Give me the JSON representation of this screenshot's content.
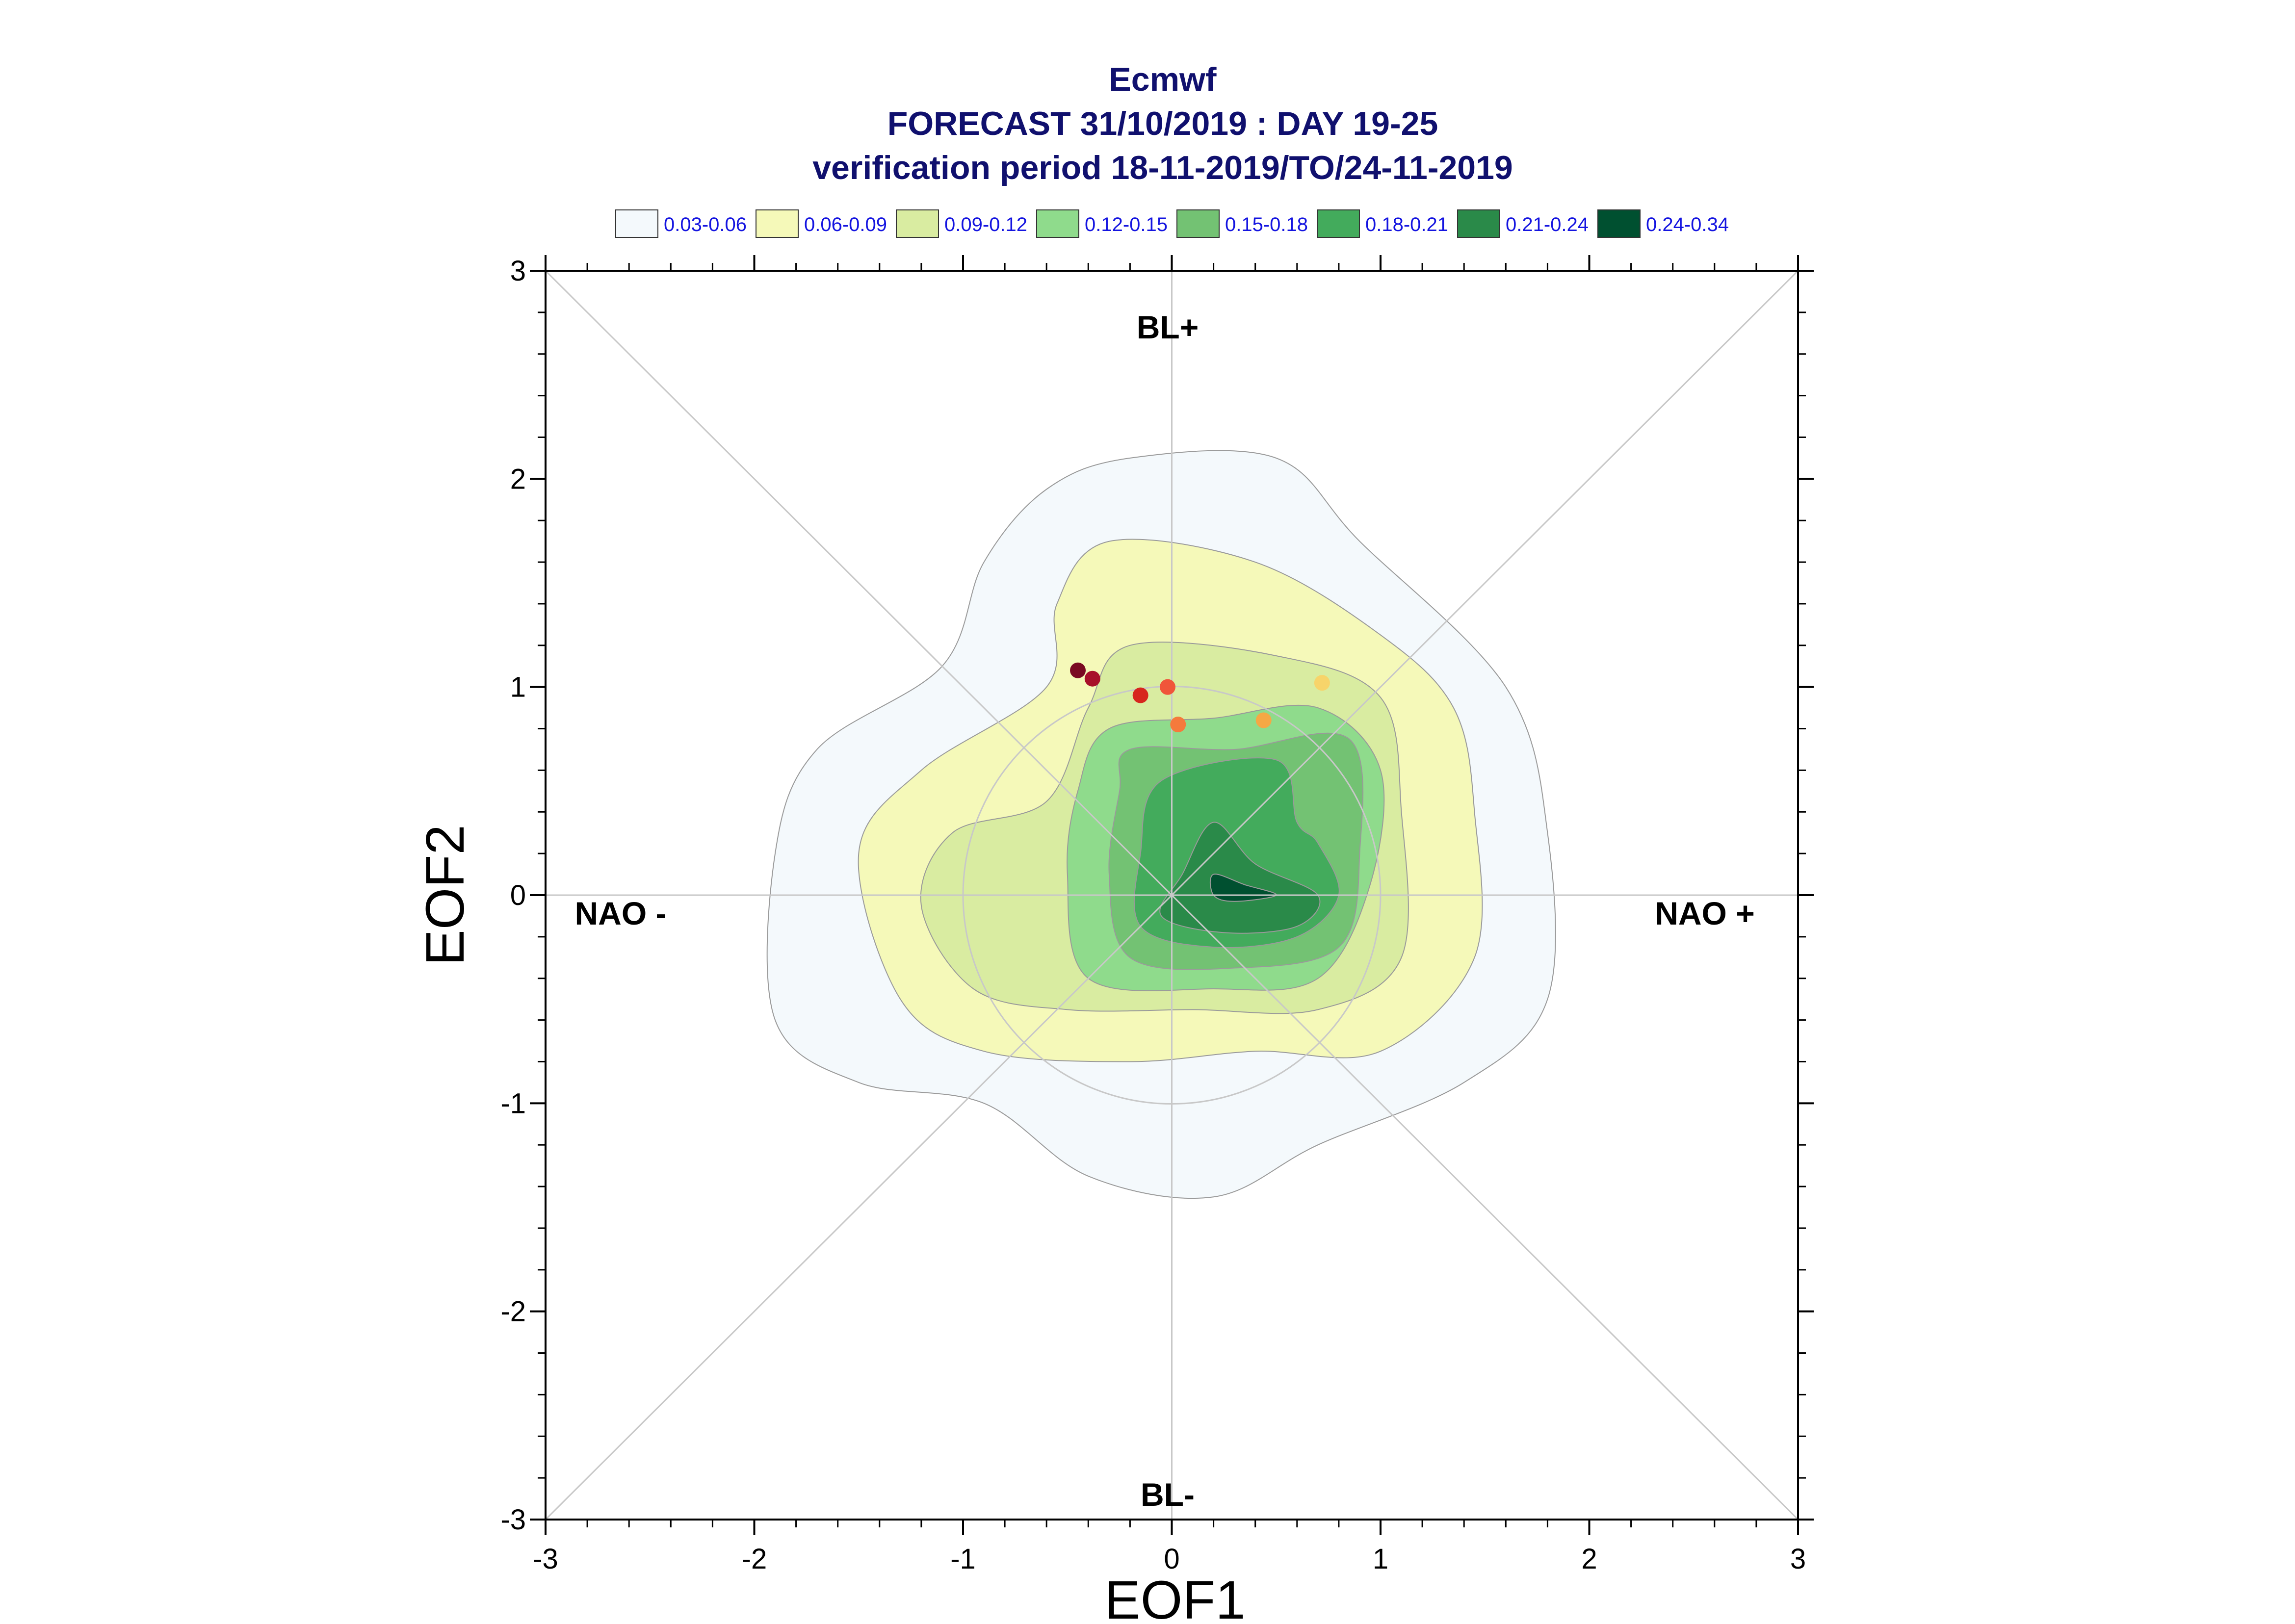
{
  "chart_data": {
    "type": "contour",
    "title": "Ecmwf",
    "subtitle": "FORECAST 31/10/2019 : DAY 19-25",
    "subtitle2": "verification period 18-11-2019/TO/24-11-2019",
    "xlabel": "EOF1",
    "ylabel": "EOF2",
    "xlim": [
      -3,
      3
    ],
    "ylim": [
      -3,
      3
    ],
    "xticks": [
      "-3",
      "-2",
      "-1",
      "0",
      "1",
      "2",
      "3"
    ],
    "yticks": [
      "-3",
      "-2",
      "-1",
      "0",
      "1",
      "2",
      "3"
    ],
    "regime_labels": {
      "top": "BL+",
      "bottom": "BL-",
      "left": "NAO -",
      "right": "NAO +"
    },
    "legend": [
      {
        "label": "0.03-0.06",
        "color": "#f4f9fc"
      },
      {
        "label": "0.06-0.09",
        "color": "#f5f9b9"
      },
      {
        "label": "0.09-0.12",
        "color": "#d9eca1"
      },
      {
        "label": "0.12-0.15",
        "color": "#8fdb8c"
      },
      {
        "label": "0.15-0.18",
        "color": "#73c273"
      },
      {
        "label": "0.18-0.21",
        "color": "#43ab5c"
      },
      {
        "label": "0.21-0.24",
        "color": "#2a8a49"
      },
      {
        "label": "0.24-0.34",
        "color": "#005030"
      }
    ],
    "density_contours": [
      {
        "level": "0.03-0.06",
        "color": "#f4f9fc",
        "points": [
          [
            -0.2,
            2.1
          ],
          [
            0.5,
            2.1
          ],
          [
            0.9,
            1.7
          ],
          [
            1.6,
            1.0
          ],
          [
            1.8,
            0.3
          ],
          [
            1.8,
            -0.5
          ],
          [
            1.4,
            -0.9
          ],
          [
            0.7,
            -1.2
          ],
          [
            0.2,
            -1.45
          ],
          [
            -0.4,
            -1.35
          ],
          [
            -0.9,
            -1.0
          ],
          [
            -1.5,
            -0.9
          ],
          [
            -1.9,
            -0.6
          ],
          [
            -1.9,
            0.2
          ],
          [
            -1.7,
            0.7
          ],
          [
            -1.1,
            1.1
          ],
          [
            -0.9,
            1.6
          ],
          [
            -0.6,
            1.95
          ]
        ]
      },
      {
        "level": "0.06-0.09",
        "color": "#f5f9b9",
        "points": [
          [
            -0.3,
            1.7
          ],
          [
            0.4,
            1.6
          ],
          [
            1.0,
            1.25
          ],
          [
            1.35,
            0.9
          ],
          [
            1.45,
            0.4
          ],
          [
            1.45,
            -0.3
          ],
          [
            1.0,
            -0.75
          ],
          [
            0.4,
            -0.75
          ],
          [
            -0.2,
            -0.8
          ],
          [
            -0.9,
            -0.75
          ],
          [
            -1.3,
            -0.5
          ],
          [
            -1.5,
            0.2
          ],
          [
            -1.2,
            0.6
          ],
          [
            -0.6,
            1.0
          ],
          [
            -0.55,
            1.4
          ]
        ]
      },
      {
        "level": "0.09-0.12",
        "color": "#d9eca1",
        "points": [
          [
            -0.2,
            1.2
          ],
          [
            0.5,
            1.15
          ],
          [
            1.0,
            0.95
          ],
          [
            1.1,
            0.4
          ],
          [
            1.1,
            -0.3
          ],
          [
            0.7,
            -0.55
          ],
          [
            0.1,
            -0.55
          ],
          [
            -0.5,
            -0.55
          ],
          [
            -0.95,
            -0.45
          ],
          [
            -1.2,
            -0.05
          ],
          [
            -1.05,
            0.3
          ],
          [
            -0.6,
            0.45
          ],
          [
            -0.4,
            0.9
          ]
        ]
      },
      {
        "level": "0.12-0.15",
        "color": "#8fdb8c",
        "points": [
          [
            -0.3,
            0.8
          ],
          [
            0.2,
            0.85
          ],
          [
            0.7,
            0.9
          ],
          [
            1.0,
            0.6
          ],
          [
            0.95,
            0.05
          ],
          [
            0.7,
            -0.4
          ],
          [
            0.2,
            -0.45
          ],
          [
            -0.4,
            -0.4
          ],
          [
            -0.5,
            0.1
          ],
          [
            -0.45,
            0.5
          ]
        ]
      },
      {
        "level": "0.15-0.18",
        "color": "#73c273",
        "points": [
          [
            -0.2,
            0.7
          ],
          [
            0.3,
            0.7
          ],
          [
            0.85,
            0.75
          ],
          [
            0.9,
            0.2
          ],
          [
            0.8,
            -0.25
          ],
          [
            0.3,
            -0.35
          ],
          [
            -0.2,
            -0.3
          ],
          [
            -0.3,
            0.1
          ],
          [
            -0.25,
            0.5
          ]
        ]
      },
      {
        "level": "0.18-0.21",
        "color": "#43ab5c",
        "points": [
          [
            -0.05,
            0.55
          ],
          [
            0.5,
            0.65
          ],
          [
            0.6,
            0.35
          ],
          [
            0.7,
            0.25
          ],
          [
            0.8,
            0.0
          ],
          [
            0.6,
            -0.2
          ],
          [
            0.2,
            -0.25
          ],
          [
            -0.15,
            -0.15
          ],
          [
            -0.15,
            0.2
          ]
        ]
      },
      {
        "level": "0.21-0.24",
        "color": "#2a8a49",
        "points": [
          [
            0.2,
            0.35
          ],
          [
            0.4,
            0.15
          ],
          [
            0.7,
            0.0
          ],
          [
            0.6,
            -0.15
          ],
          [
            0.25,
            -0.18
          ],
          [
            -0.05,
            -0.1
          ],
          [
            0.05,
            0.1
          ]
        ]
      },
      {
        "level": "0.24-0.34",
        "color": "#005030",
        "points": [
          [
            0.2,
            0.1
          ],
          [
            0.35,
            0.05
          ],
          [
            0.5,
            0.0
          ],
          [
            0.3,
            -0.03
          ],
          [
            0.2,
            0.0
          ]
        ]
      }
    ],
    "reference_circle": {
      "center": [
        0,
        0
      ],
      "radius": 1
    },
    "forecast_points": [
      {
        "x": -0.45,
        "y": 1.08,
        "color": "#7a0a22"
      },
      {
        "x": -0.38,
        "y": 1.04,
        "color": "#a8102a"
      },
      {
        "x": -0.15,
        "y": 0.96,
        "color": "#d7261e"
      },
      {
        "x": -0.02,
        "y": 1.0,
        "color": "#f0553a"
      },
      {
        "x": 0.03,
        "y": 0.82,
        "color": "#f57a3c"
      },
      {
        "x": 0.44,
        "y": 0.84,
        "color": "#f5a845"
      },
      {
        "x": 0.72,
        "y": 1.02,
        "color": "#f7d46a"
      }
    ]
  }
}
